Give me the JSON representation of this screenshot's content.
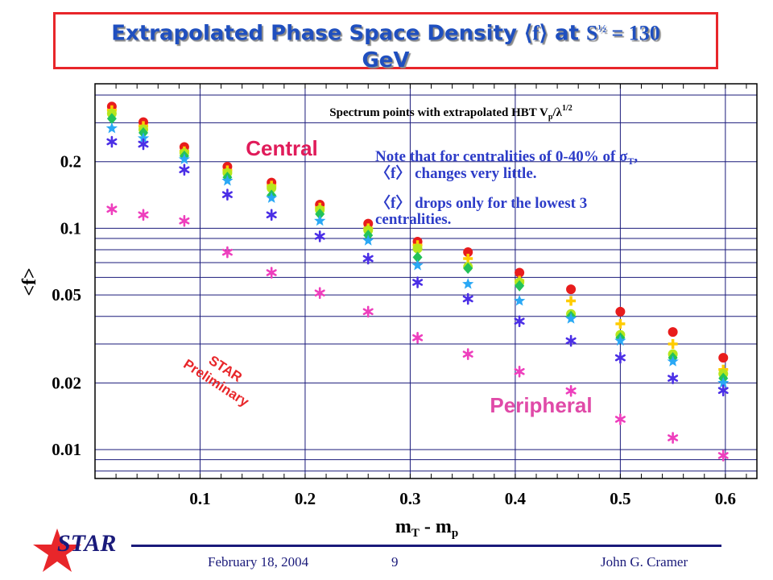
{
  "title": {
    "prefix": "Extrapolated Phase Space Density ",
    "f_symbol": "⟨f⟩",
    "mid": " at ",
    "s_symbol": "S",
    "s_power": "½",
    "suffix": " = 130",
    "line2": "GeV"
  },
  "footer": {
    "logo_text": "STAR",
    "date": "February 18, 2004",
    "page": "9",
    "author": "John G. Cramer"
  },
  "chart_data": {
    "type": "scatter",
    "subtitle": "Spectrum points with extrapolated HBT V",
    "subtitle_sub": "p",
    "subtitle_tail": "/λ",
    "subtitle_sup": "1/2",
    "xlabel": "m",
    "xlabel_sub_T": "T",
    "xlabel_minus": " - m",
    "xlabel_sub_p": "p",
    "ylabel": "<f>",
    "xlim": [
      0.0,
      0.63
    ],
    "ylim": [
      0.0074,
      0.45
    ],
    "yscale": "log",
    "xticks": [
      0.1,
      0.2,
      0.3,
      0.4,
      0.5,
      0.6
    ],
    "xtick_labels": [
      "0.1",
      "0.2",
      "0.3",
      "0.4",
      "0.5",
      "0.6"
    ],
    "yticks": [
      0.01,
      0.02,
      0.05,
      0.1,
      0.2
    ],
    "ytick_labels": [
      "0.01",
      "0.02",
      "0.05",
      "0.1",
      "0.2"
    ],
    "grid": true,
    "x": [
      0.016,
      0.046,
      0.085,
      0.126,
      0.168,
      0.214,
      0.26,
      0.307,
      0.355,
      0.404,
      0.453,
      0.5,
      0.55,
      0.598
    ],
    "series": [
      {
        "color": "#e81c1c",
        "marker": "circle",
        "values": [
          0.355,
          0.302,
          0.233,
          0.19,
          0.161,
          0.128,
          0.105,
          0.087,
          0.078,
          0.063,
          0.053,
          0.042,
          0.034,
          0.026
        ]
      },
      {
        "color": "#ffcc00",
        "marker": "cross",
        "values": [
          0.342,
          0.29,
          0.223,
          0.183,
          0.156,
          0.124,
          0.1,
          0.084,
          0.073,
          0.058,
          0.047,
          0.037,
          0.03,
          0.023
        ]
      },
      {
        "color": "#b5e61d",
        "marker": "circle",
        "values": [
          0.33,
          0.28,
          0.219,
          0.178,
          0.152,
          0.121,
          0.098,
          0.081,
          0.067,
          0.057,
          0.041,
          0.033,
          0.027,
          0.022
        ]
      },
      {
        "color": "#22c25a",
        "marker": "diamond",
        "values": [
          0.313,
          0.27,
          0.212,
          0.17,
          0.141,
          0.116,
          0.093,
          0.074,
          0.066,
          0.055,
          0.04,
          0.032,
          0.026,
          0.021
        ]
      },
      {
        "color": "#2aa8f5",
        "marker": "star",
        "values": [
          0.283,
          0.255,
          0.205,
          0.164,
          0.137,
          0.108,
          0.088,
          0.068,
          0.056,
          0.047,
          0.039,
          0.031,
          0.025,
          0.02
        ]
      },
      {
        "color": "#4b2fe6",
        "marker": "asterisk",
        "values": [
          0.246,
          0.24,
          0.184,
          0.142,
          0.115,
          0.092,
          0.073,
          0.057,
          0.048,
          0.038,
          0.031,
          0.026,
          0.021,
          0.0185
        ]
      },
      {
        "color": "#ee3fbd",
        "marker": "asterisk",
        "values": [
          0.122,
          0.115,
          0.108,
          0.078,
          0.063,
          0.051,
          0.042,
          0.032,
          0.027,
          0.0225,
          0.0184,
          0.0137,
          0.0113,
          0.0094
        ]
      }
    ],
    "annotations": {
      "central": "Central",
      "peripheral": "Peripheral",
      "star_line1": "STAR",
      "star_line2": "Preliminary",
      "note1_a": "Note that for centralities of 0-40% of σ",
      "note1_sub": "T",
      "note1_b": ",",
      "note2": "〈f〉 changes very little.",
      "note3": "〈f〉 drops only for the lowest 3",
      "note4": "centralities."
    }
  }
}
